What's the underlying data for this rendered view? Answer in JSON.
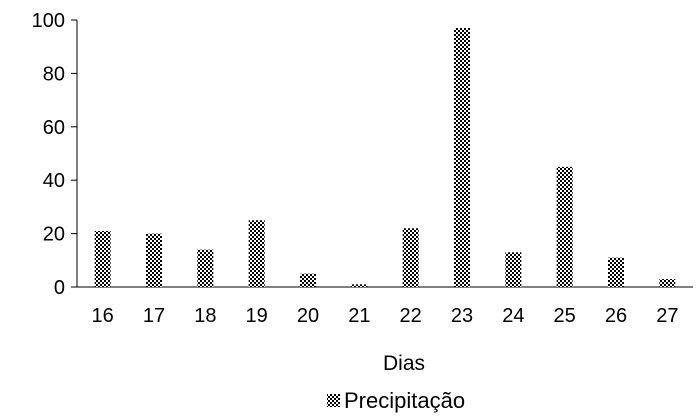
{
  "chart_data": {
    "type": "bar",
    "categories": [
      "16",
      "17",
      "18",
      "19",
      "20",
      "21",
      "22",
      "23",
      "24",
      "25",
      "26",
      "27"
    ],
    "series": [
      {
        "name": "Precipitação",
        "values": [
          21,
          20,
          14,
          25,
          5,
          1,
          22,
          97,
          13,
          45,
          11,
          3
        ]
      }
    ],
    "xlabel": "Dias",
    "ylabel": "",
    "ylim": [
      0,
      100
    ],
    "yticks": [
      0,
      20,
      40,
      60,
      80,
      100
    ],
    "grid": false,
    "legend_position": "bottom",
    "bar_fill": "crosshatch",
    "colors": {
      "bar": "#000000",
      "axis": "#000000",
      "background": "#ffffff"
    }
  }
}
